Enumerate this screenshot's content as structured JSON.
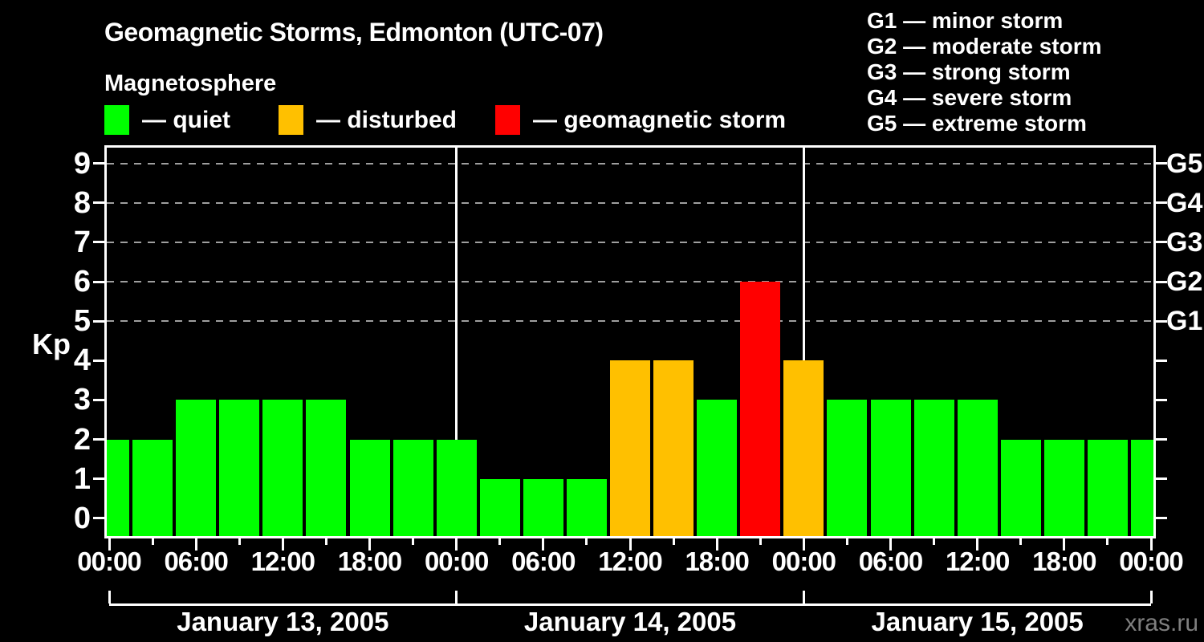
{
  "header": {
    "title": "Geomagnetic Storms, Edmonton (UTC-07)",
    "subtitle": "Magnetosphere"
  },
  "legend": {
    "items": [
      {
        "label": "— quiet",
        "color": "#00ff00",
        "key": "quiet"
      },
      {
        "label": "— disturbed",
        "color": "#ffc000",
        "key": "disturbed"
      },
      {
        "label": "— geomagnetic storm",
        "color": "#ff0000",
        "key": "storm"
      }
    ]
  },
  "g_scale_legend": {
    "items": [
      "G1 — minor storm",
      "G2 — moderate storm",
      "G3 — strong storm",
      "G4 — severe storm",
      "G5 — extreme storm"
    ]
  },
  "watermark": "xras.ru",
  "chart_data": {
    "type": "bar",
    "title": "Geomagnetic Storms, Edmonton (UTC-07)",
    "subtitle": "Magnetosphere",
    "xlabel": "",
    "ylabel": "Kp",
    "ylim": [
      0,
      9
    ],
    "y_ticks": [
      0,
      1,
      2,
      3,
      4,
      5,
      6,
      7,
      8,
      9
    ],
    "gridlines_kp": [
      5,
      6,
      7,
      8,
      9
    ],
    "grid_style": "dashed gray, horizontal only",
    "legend_position": "top",
    "bar_interval_hours": 3,
    "right_axis_labels": [
      {
        "text": "G5",
        "kp": 9
      },
      {
        "text": "G4",
        "kp": 8
      },
      {
        "text": "G3",
        "kp": 7
      },
      {
        "text": "G2",
        "kp": 6
      },
      {
        "text": "G1",
        "kp": 5
      }
    ],
    "x_major_labels": [
      "00:00",
      "06:00",
      "12:00",
      "18:00",
      "00:00",
      "06:00",
      "12:00",
      "18:00",
      "00:00",
      "06:00",
      "12:00",
      "18:00",
      "00:00"
    ],
    "days": [
      {
        "label": "January 13, 2005",
        "from_tick": 0,
        "to_tick": 8
      },
      {
        "label": "January 14, 2005",
        "from_tick": 8,
        "to_tick": 16
      },
      {
        "label": "January 15, 2005",
        "from_tick": 16,
        "to_tick": 24
      }
    ],
    "colors": {
      "quiet": "#00ff00",
      "disturbed": "#ffc000",
      "storm": "#ff0000"
    },
    "points": [
      {
        "time": "2005-01-13 00:00",
        "kp": 2,
        "level": "quiet"
      },
      {
        "time": "2005-01-13 03:00",
        "kp": 2,
        "level": "quiet"
      },
      {
        "time": "2005-01-13 06:00",
        "kp": 3,
        "level": "quiet"
      },
      {
        "time": "2005-01-13 09:00",
        "kp": 3,
        "level": "quiet"
      },
      {
        "time": "2005-01-13 12:00",
        "kp": 3,
        "level": "quiet"
      },
      {
        "time": "2005-01-13 15:00",
        "kp": 3,
        "level": "quiet"
      },
      {
        "time": "2005-01-13 18:00",
        "kp": 2,
        "level": "quiet"
      },
      {
        "time": "2005-01-13 21:00",
        "kp": 2,
        "level": "quiet"
      },
      {
        "time": "2005-01-14 00:00",
        "kp": 2,
        "level": "quiet"
      },
      {
        "time": "2005-01-14 03:00",
        "kp": 1,
        "level": "quiet"
      },
      {
        "time": "2005-01-14 06:00",
        "kp": 1,
        "level": "quiet"
      },
      {
        "time": "2005-01-14 09:00",
        "kp": 1,
        "level": "quiet"
      },
      {
        "time": "2005-01-14 12:00",
        "kp": 4,
        "level": "disturbed"
      },
      {
        "time": "2005-01-14 15:00",
        "kp": 4,
        "level": "disturbed"
      },
      {
        "time": "2005-01-14 18:00",
        "kp": 3,
        "level": "quiet"
      },
      {
        "time": "2005-01-14 21:00",
        "kp": 6,
        "level": "storm"
      },
      {
        "time": "2005-01-15 00:00",
        "kp": 4,
        "level": "disturbed"
      },
      {
        "time": "2005-01-15 03:00",
        "kp": 3,
        "level": "quiet"
      },
      {
        "time": "2005-01-15 06:00",
        "kp": 3,
        "level": "quiet"
      },
      {
        "time": "2005-01-15 09:00",
        "kp": 3,
        "level": "quiet"
      },
      {
        "time": "2005-01-15 12:00",
        "kp": 3,
        "level": "quiet"
      },
      {
        "time": "2005-01-15 15:00",
        "kp": 2,
        "level": "quiet"
      },
      {
        "time": "2005-01-15 18:00",
        "kp": 2,
        "level": "quiet"
      },
      {
        "time": "2005-01-15 21:00",
        "kp": 2,
        "level": "quiet"
      },
      {
        "time": "2005-01-16 00:00",
        "kp": 2,
        "level": "quiet"
      }
    ]
  }
}
